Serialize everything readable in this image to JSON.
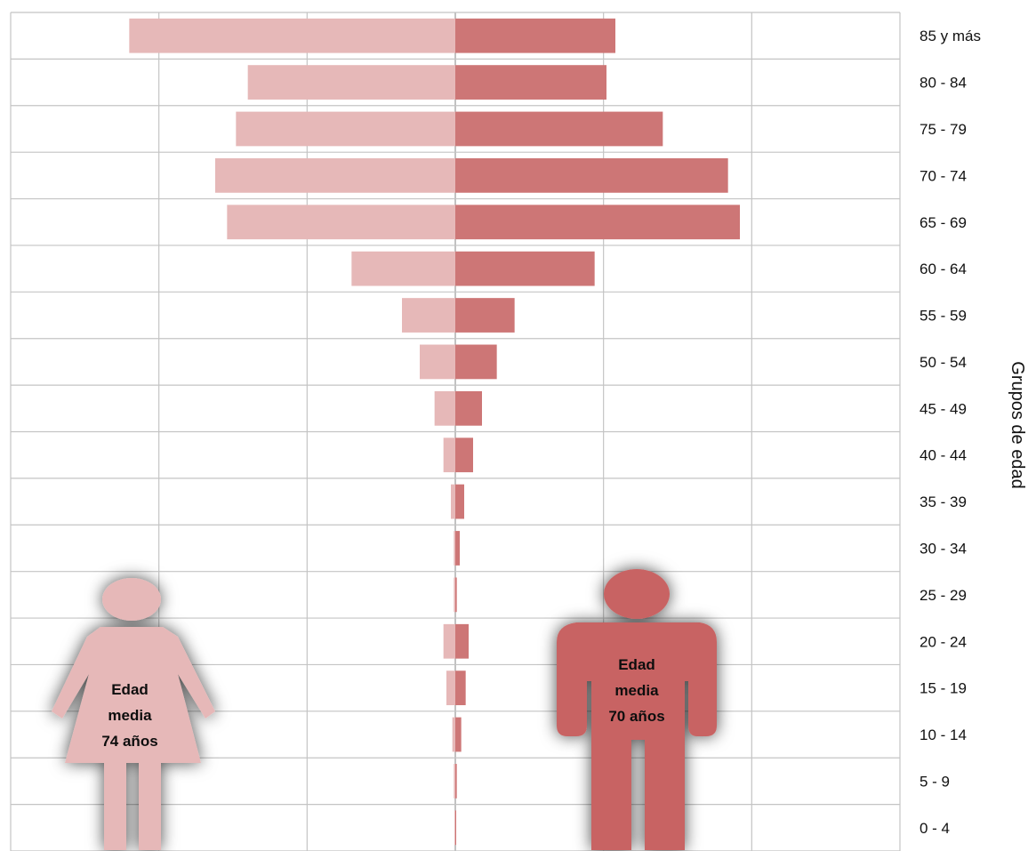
{
  "chart_data": {
    "type": "bar",
    "orientation": "horizontal",
    "subtype": "population-pyramid",
    "ylabel": "Grupos de edad",
    "categories": [
      "85 y más",
      "80 - 84",
      "75 - 79",
      "70 - 74",
      "65 - 69",
      "60 - 64",
      "55 - 59",
      "50 - 54",
      "45 - 49",
      "40 - 44",
      "35 - 39",
      "30 - 34",
      "25 - 29",
      "20 - 24",
      "15 - 19",
      "10 - 14",
      "5 - 9",
      "0 - 4"
    ],
    "series": [
      {
        "side": "left",
        "color": "#e6b8b8",
        "values": [
          11.0,
          7.0,
          7.4,
          8.1,
          7.7,
          3.5,
          1.8,
          1.2,
          0.7,
          0.4,
          0.15,
          0.05,
          0.05,
          0.4,
          0.3,
          0.1,
          0.05,
          0.02
        ]
      },
      {
        "side": "right",
        "color": "#cd7676",
        "values": [
          5.4,
          5.1,
          7.0,
          9.2,
          9.6,
          4.7,
          2.0,
          1.4,
          0.9,
          0.6,
          0.3,
          0.15,
          0.05,
          0.45,
          0.35,
          0.2,
          0.05,
          0.02
        ]
      }
    ],
    "xlim": [
      -15,
      15
    ],
    "grid": true,
    "legend": "none",
    "annotations": {
      "female": {
        "line1": "Edad",
        "line2": "media",
        "line3": "74 años",
        "color": "#e6b8b8"
      },
      "male": {
        "line1": "Edad",
        "line2": "media",
        "line3": "70 años",
        "color": "#c86464"
      }
    }
  }
}
